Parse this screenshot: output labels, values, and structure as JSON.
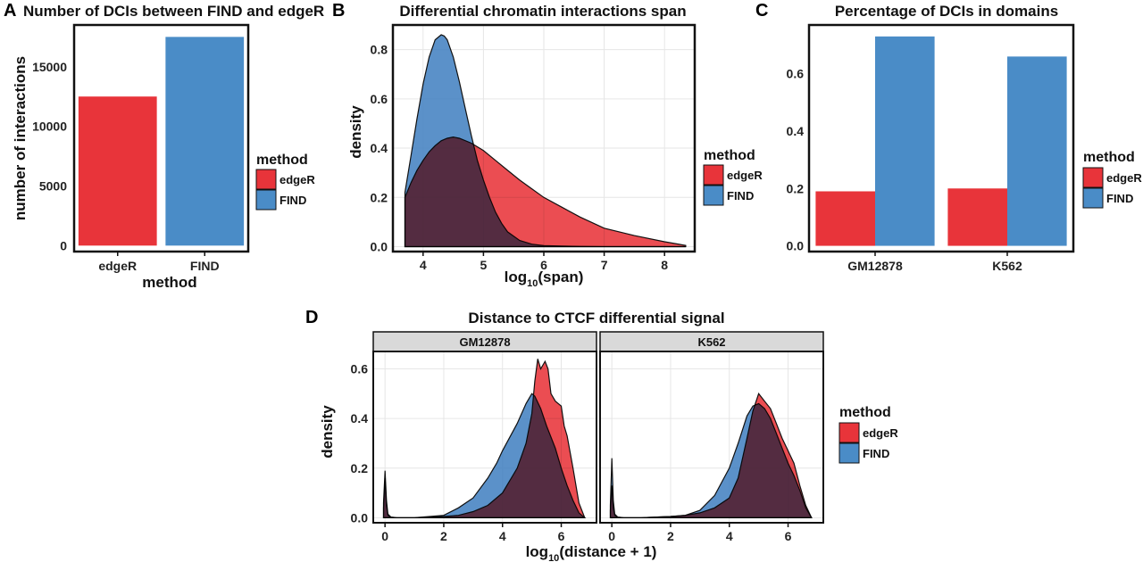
{
  "colors": {
    "edgeR": "#E8343A",
    "FIND": "#4A8CC7",
    "FIND_fill": "#3E7EBF",
    "overlap": "#5B6399",
    "grid": "#E6E6E6",
    "strip_bg": "#D9D9D9"
  },
  "legend": {
    "title": "method",
    "items": [
      "edgeR",
      "FIND"
    ]
  },
  "chart_data": [
    {
      "panel": "A",
      "type": "bar",
      "title": "Number of DCIs between FIND and edgeR",
      "xlabel": "method",
      "ylabel": "number of interactions",
      "categories": [
        "edgeR",
        "FIND"
      ],
      "values": [
        12500,
        17500
      ],
      "ylim": [
        -500,
        18500
      ],
      "yticks": [
        0,
        5000,
        10000,
        15000
      ],
      "ytick_labels": [
        "0",
        "5000",
        "10000",
        "15000"
      ],
      "grid": false,
      "legend": "right"
    },
    {
      "panel": "B",
      "type": "area",
      "title": "Differential chromatin interactions span",
      "xlabel": "log10(span)",
      "xlabel_main": "log",
      "xlabel_sub": "10",
      "xlabel_tail": "(span)",
      "ylabel": "density",
      "xlim": [
        3.5,
        8.5
      ],
      "ylim": [
        -0.02,
        0.9
      ],
      "xticks": [
        4,
        5,
        6,
        7,
        8
      ],
      "xtick_labels": [
        "4",
        "5",
        "6",
        "7",
        "8"
      ],
      "yticks": [
        0,
        0.2,
        0.4,
        0.6,
        0.8
      ],
      "ytick_labels": [
        "0.0",
        "0.2",
        "0.4",
        "0.6",
        "0.8"
      ],
      "grid": true,
      "legend": "right",
      "series": [
        {
          "name": "edgeR",
          "x": [
            3.7,
            3.8,
            3.9,
            4.0,
            4.1,
            4.2,
            4.3,
            4.4,
            4.5,
            4.6,
            4.8,
            5.0,
            5.2,
            5.4,
            5.6,
            5.8,
            6.0,
            6.3,
            6.6,
            7.0,
            7.5,
            8.0,
            8.35
          ],
          "y": [
            0.2,
            0.26,
            0.31,
            0.35,
            0.385,
            0.41,
            0.43,
            0.44,
            0.445,
            0.44,
            0.42,
            0.39,
            0.35,
            0.31,
            0.27,
            0.235,
            0.2,
            0.16,
            0.12,
            0.075,
            0.045,
            0.02,
            0.005
          ]
        },
        {
          "name": "FIND",
          "x": [
            3.7,
            3.8,
            3.9,
            4.0,
            4.1,
            4.2,
            4.3,
            4.35,
            4.4,
            4.5,
            4.6,
            4.7,
            4.8,
            4.9,
            5.0,
            5.1,
            5.2,
            5.3,
            5.4,
            5.6,
            5.8,
            6.0,
            6.3,
            6.6,
            7.0,
            7.5,
            8.0,
            8.35
          ],
          "y": [
            0.22,
            0.37,
            0.52,
            0.66,
            0.77,
            0.84,
            0.86,
            0.855,
            0.84,
            0.77,
            0.67,
            0.56,
            0.45,
            0.35,
            0.27,
            0.2,
            0.14,
            0.095,
            0.06,
            0.025,
            0.01,
            0.004,
            0.002,
            0.001,
            0.0,
            0.0,
            0.0,
            0.0
          ]
        }
      ]
    },
    {
      "panel": "C",
      "type": "bar",
      "title": "Percentage of DCIs in domains",
      "xlabel": "",
      "ylabel": "",
      "categories": [
        "GM12878",
        "K562"
      ],
      "series": [
        {
          "name": "edgeR",
          "values": [
            0.19,
            0.2
          ]
        },
        {
          "name": "FIND",
          "values": [
            0.73,
            0.66
          ]
        }
      ],
      "ylim": [
        -0.02,
        0.77
      ],
      "yticks": [
        0,
        0.2,
        0.4,
        0.6
      ],
      "ytick_labels": [
        "0.0",
        "0.2",
        "0.4",
        "0.6"
      ],
      "grid": false,
      "legend": "right"
    },
    {
      "panel": "D",
      "type": "area",
      "title": "Distance to CTCF differential signal",
      "xlabel": "log10(distance + 1)",
      "xlabel_main": "log",
      "xlabel_sub": "10",
      "xlabel_tail": "(distance + 1)",
      "ylabel": "density",
      "xlim": [
        -0.4,
        7.2
      ],
      "ylim": [
        -0.02,
        0.67
      ],
      "xticks": [
        0,
        2,
        4,
        6
      ],
      "xtick_labels": [
        "0",
        "2",
        "4",
        "6"
      ],
      "yticks": [
        0,
        0.2,
        0.4,
        0.6
      ],
      "ytick_labels": [
        "0.0",
        "0.2",
        "0.4",
        "0.6"
      ],
      "grid": true,
      "legend": "right",
      "facets": [
        {
          "strip": "GM12878",
          "series": [
            {
              "name": "edgeR",
              "x": [
                -0.05,
                0.0,
                0.05,
                0.1,
                0.2,
                0.4,
                1.0,
                2.0,
                2.5,
                3.0,
                3.5,
                4.0,
                4.5,
                4.8,
                5.0,
                5.1,
                5.2,
                5.3,
                5.45,
                5.55,
                5.65,
                5.8,
                6.0,
                6.1,
                6.2,
                6.4,
                6.6,
                6.8
              ],
              "y": [
                0.04,
                0.16,
                0.05,
                0.01,
                0.002,
                0.0,
                0.0,
                0.005,
                0.01,
                0.025,
                0.05,
                0.1,
                0.2,
                0.3,
                0.42,
                0.55,
                0.64,
                0.6,
                0.63,
                0.6,
                0.5,
                0.47,
                0.45,
                0.37,
                0.33,
                0.2,
                0.06,
                0.0
              ]
            },
            {
              "name": "FIND",
              "x": [
                -0.05,
                0.0,
                0.05,
                0.1,
                0.2,
                0.4,
                1.0,
                2.0,
                2.5,
                3.0,
                3.5,
                3.8,
                4.0,
                4.5,
                4.8,
                5.0,
                5.1,
                5.3,
                5.5,
                5.8,
                6.0,
                6.2,
                6.4,
                6.6,
                6.8
              ],
              "y": [
                0.06,
                0.19,
                0.07,
                0.015,
                0.003,
                0.0,
                0.0,
                0.01,
                0.04,
                0.08,
                0.16,
                0.22,
                0.27,
                0.38,
                0.46,
                0.5,
                0.49,
                0.44,
                0.37,
                0.28,
                0.2,
                0.13,
                0.07,
                0.02,
                0.0
              ]
            }
          ]
        },
        {
          "strip": "K562",
          "series": [
            {
              "name": "edgeR",
              "x": [
                -0.05,
                0.0,
                0.05,
                0.1,
                0.2,
                0.4,
                1.0,
                2.0,
                2.5,
                3.0,
                3.5,
                4.0,
                4.3,
                4.6,
                4.8,
                5.0,
                5.2,
                5.4,
                5.6,
                5.8,
                6.0,
                6.2,
                6.4,
                6.6,
                6.8
              ],
              "y": [
                0.03,
                0.13,
                0.04,
                0.01,
                0.002,
                0.0,
                0.0,
                0.005,
                0.01,
                0.02,
                0.04,
                0.08,
                0.16,
                0.32,
                0.43,
                0.5,
                0.47,
                0.44,
                0.38,
                0.32,
                0.27,
                0.22,
                0.13,
                0.05,
                0.0
              ]
            },
            {
              "name": "FIND",
              "x": [
                -0.05,
                0.0,
                0.05,
                0.1,
                0.2,
                0.4,
                1.0,
                2.0,
                2.5,
                3.0,
                3.5,
                4.0,
                4.3,
                4.6,
                4.8,
                5.0,
                5.2,
                5.4,
                5.6,
                5.8,
                6.0,
                6.2,
                6.4,
                6.6,
                6.8
              ],
              "y": [
                0.05,
                0.24,
                0.07,
                0.015,
                0.003,
                0.0,
                0.0,
                0.005,
                0.01,
                0.03,
                0.09,
                0.2,
                0.3,
                0.41,
                0.45,
                0.46,
                0.44,
                0.4,
                0.34,
                0.28,
                0.22,
                0.17,
                0.11,
                0.04,
                0.0
              ]
            }
          ]
        }
      ]
    }
  ]
}
